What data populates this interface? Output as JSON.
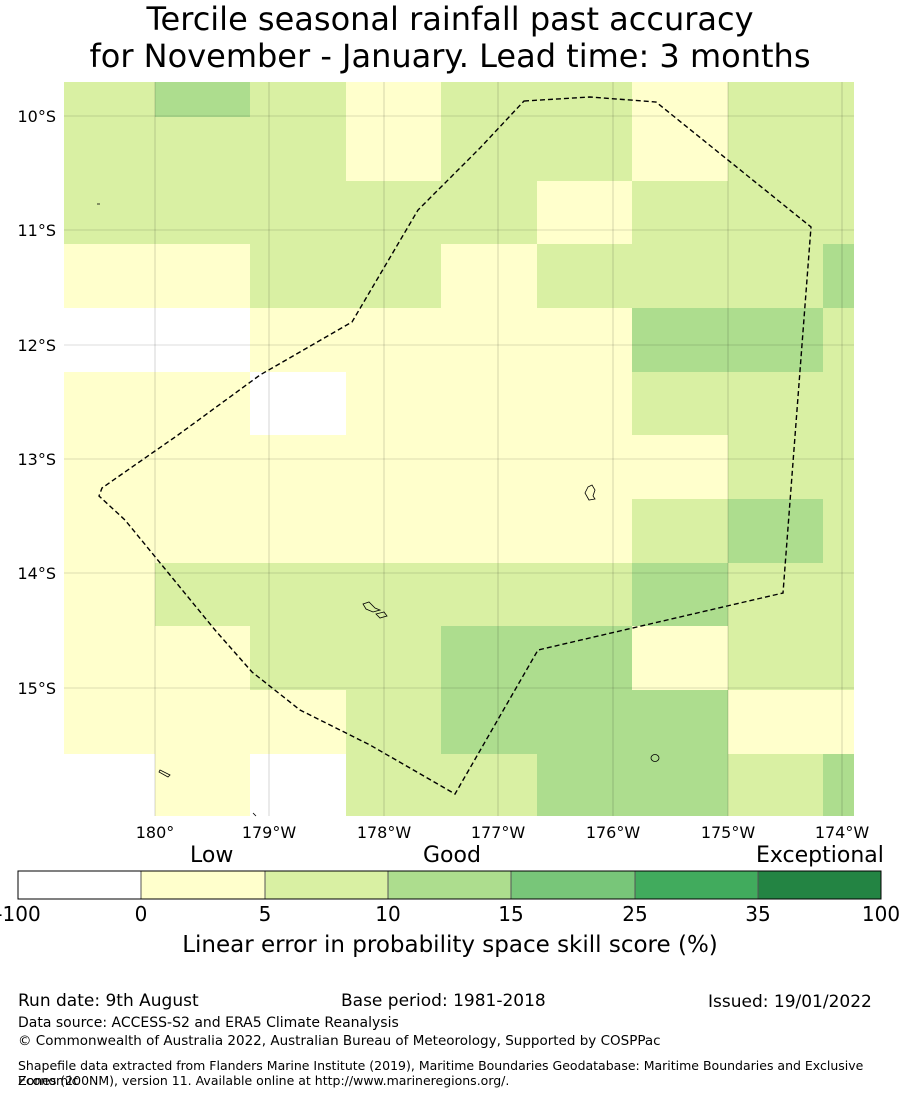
{
  "title": {
    "line1": "Tercile seasonal rainfall past accuracy",
    "line2": "for November - January. Lead time: 3 months"
  },
  "map": {
    "lat_labels": [
      "10°S",
      "11°S",
      "12°S",
      "13°S",
      "14°S",
      "15°S"
    ],
    "lon_labels": [
      "180°",
      "179°W",
      "178°W",
      "177°W",
      "176°W",
      "175°W",
      "174°W"
    ],
    "legend_colors": [
      "#ffffff",
      "#ffffcc",
      "#d9f0a3",
      "#addd8e",
      "#78c679",
      "#41ab5d",
      "#238443"
    ],
    "skill_grid": [
      [
        2,
        3,
        2,
        1,
        2,
        2,
        1,
        2,
        2
      ],
      [
        2,
        2,
        2,
        1,
        2,
        2,
        1,
        2,
        2
      ],
      [
        2,
        2,
        2,
        2,
        2,
        1,
        2,
        2,
        2
      ],
      [
        1,
        1,
        2,
        2,
        1,
        2,
        2,
        2,
        3
      ],
      [
        0,
        0,
        1,
        1,
        1,
        1,
        3,
        3,
        2
      ],
      [
        1,
        1,
        0,
        1,
        1,
        1,
        2,
        2,
        2
      ],
      [
        1,
        1,
        1,
        1,
        1,
        1,
        1,
        2,
        2
      ],
      [
        1,
        1,
        1,
        1,
        1,
        1,
        2,
        3,
        2
      ],
      [
        1,
        2,
        2,
        2,
        2,
        2,
        3,
        2,
        2
      ],
      [
        1,
        1,
        2,
        2,
        3,
        3,
        1,
        2,
        2
      ],
      [
        1,
        1,
        1,
        2,
        3,
        3,
        3,
        1,
        1
      ],
      [
        0,
        1,
        0,
        2,
        2,
        3,
        3,
        2,
        3
      ]
    ]
  },
  "colorbar": {
    "category_low": "Low",
    "category_good": "Good",
    "category_exceptional": "Exceptional",
    "ticks": [
      "-100",
      "0",
      "5",
      "10",
      "15",
      "25",
      "35",
      "100"
    ],
    "title": "Linear error in probability space skill score (%)"
  },
  "footer": {
    "run_date": "Run date: 9th August",
    "base_period": "Base period: 1981-2018",
    "issued": "Issued: 19/01/2022",
    "data_source": "Data source: ACCESS-S2 and ERA5 Climate Reanalysis",
    "copyright": "© Commonwealth of Australia 2022, Australian Bureau of Meteorology, Supported by COSPPac",
    "shapefile_line1": "Shapefile data extracted from Flanders Marine Institute (2019), Maritime Boundaries Geodatabase: Maritime Boundaries and Exclusive Economic",
    "shapefile_line2": "Zones (200NM), version 11. Available online at http://www.marineregions.org/."
  }
}
